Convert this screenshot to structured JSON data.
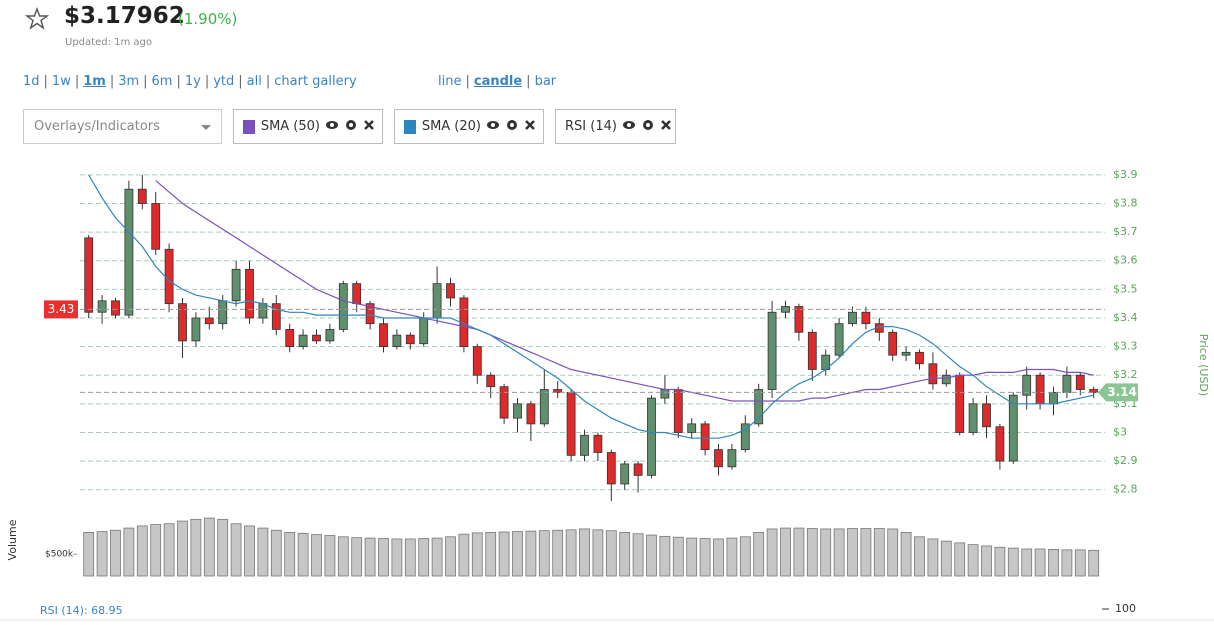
{
  "header": {
    "price": "$3.17962",
    "change": "(1.90%)",
    "updated": "Updated: 1m ago"
  },
  "ranges": {
    "items": [
      "1d",
      "1w",
      "1m",
      "3m",
      "6m",
      "1y",
      "ytd",
      "all",
      "chart gallery"
    ],
    "selected": "1m",
    "separator": "|"
  },
  "chart_types": {
    "items": [
      "line",
      "candle",
      "bar"
    ],
    "selected": "candle"
  },
  "controls": {
    "dropdown": "Overlays/Indicators"
  },
  "chart_data": {
    "type": "candlestick",
    "ylabel": "Price (USD)",
    "ylim": [
      2.75,
      3.945
    ],
    "yticks": [
      {
        "value": 2.8,
        "label": "$2.8"
      },
      {
        "value": 2.9,
        "label": "$2.9"
      },
      {
        "value": 3,
        "label": "$3"
      },
      {
        "value": 3.1,
        "label": "$3.1"
      },
      {
        "value": 3.2,
        "label": "$3.2"
      },
      {
        "value": 3.3,
        "label": "$3.3"
      },
      {
        "value": 3.4,
        "label": "$3.4"
      },
      {
        "value": 3.5,
        "label": "$3.5"
      },
      {
        "value": 3.6,
        "label": "$3.6"
      },
      {
        "value": 3.7,
        "label": "$3.7"
      },
      {
        "value": 3.8,
        "label": "$3.8"
      },
      {
        "value": 3.9,
        "label": "$3.9"
      }
    ],
    "grid": true,
    "up_color": "#5f8f6c",
    "down_color": "#dd2a2a",
    "open": [
      3.68,
      3.42,
      3.46,
      3.41,
      3.85,
      3.8,
      3.64,
      3.45,
      3.32,
      3.4,
      3.38,
      3.46,
      3.57,
      3.4,
      3.45,
      3.36,
      3.3,
      3.34,
      3.32,
      3.36,
      3.52,
      3.45,
      3.38,
      3.3,
      3.34,
      3.31,
      3.4,
      3.52,
      3.47,
      3.3,
      3.2,
      3.16,
      3.05,
      3.1,
      3.03,
      3.15,
      3.14,
      2.92,
      2.99,
      2.93,
      2.82,
      2.89,
      2.85,
      3.12,
      3.15,
      3.0,
      3.03,
      2.94,
      2.88,
      2.94,
      3.03,
      3.15,
      3.42,
      3.44,
      3.35,
      3.22,
      3.27,
      3.38,
      3.42,
      3.38,
      3.35,
      3.27,
      3.28,
      3.24,
      3.17,
      3.2,
      3.0,
      3.1,
      3.02,
      2.9,
      3.13,
      3.2,
      3.1,
      3.14,
      3.2,
      3.15
    ],
    "high": [
      3.69,
      3.48,
      3.47,
      3.88,
      3.9,
      3.84,
      3.66,
      3.47,
      3.42,
      3.44,
      3.48,
      3.6,
      3.6,
      3.47,
      3.48,
      3.38,
      3.36,
      3.36,
      3.38,
      3.53,
      3.53,
      3.46,
      3.4,
      3.36,
      3.35,
      3.42,
      3.58,
      3.54,
      3.48,
      3.31,
      3.21,
      3.17,
      3.12,
      3.11,
      3.22,
      3.18,
      3.15,
      3.01,
      3.0,
      2.94,
      2.9,
      2.9,
      3.13,
      3.2,
      3.16,
      3.05,
      3.04,
      2.96,
      2.96,
      3.06,
      3.17,
      3.46,
      3.46,
      3.45,
      3.36,
      3.29,
      3.4,
      3.44,
      3.44,
      3.4,
      3.36,
      3.3,
      3.29,
      3.28,
      3.22,
      3.21,
      3.12,
      3.13,
      3.03,
      3.14,
      3.23,
      3.21,
      3.16,
      3.23,
      3.21,
      3.16
    ],
    "low": [
      3.4,
      3.38,
      3.4,
      3.4,
      3.78,
      3.62,
      3.42,
      3.26,
      3.3,
      3.36,
      3.36,
      3.44,
      3.38,
      3.38,
      3.34,
      3.28,
      3.29,
      3.31,
      3.31,
      3.35,
      3.42,
      3.36,
      3.28,
      3.29,
      3.29,
      3.3,
      3.38,
      3.44,
      3.28,
      3.17,
      3.12,
      3.03,
      3.0,
      2.97,
      3.02,
      3.12,
      2.9,
      2.9,
      2.9,
      2.76,
      2.8,
      2.79,
      2.84,
      3.1,
      2.98,
      2.98,
      2.92,
      2.85,
      2.87,
      2.93,
      3.02,
      3.12,
      3.4,
      3.32,
      3.18,
      3.2,
      3.26,
      3.37,
      3.36,
      3.32,
      3.25,
      3.25,
      3.22,
      3.15,
      3.16,
      2.99,
      2.99,
      2.98,
      2.87,
      2.89,
      3.08,
      3.08,
      3.06,
      3.12,
      3.13,
      3.12
    ],
    "close": [
      3.42,
      3.46,
      3.41,
      3.85,
      3.8,
      3.64,
      3.45,
      3.32,
      3.4,
      3.38,
      3.46,
      3.57,
      3.4,
      3.45,
      3.36,
      3.3,
      3.34,
      3.32,
      3.36,
      3.52,
      3.45,
      3.38,
      3.3,
      3.34,
      3.31,
      3.4,
      3.52,
      3.47,
      3.3,
      3.2,
      3.16,
      3.05,
      3.1,
      3.03,
      3.15,
      3.14,
      2.92,
      2.99,
      2.93,
      2.82,
      2.89,
      2.85,
      3.12,
      3.15,
      3.0,
      3.03,
      2.94,
      2.88,
      2.94,
      3.03,
      3.15,
      3.42,
      3.44,
      3.35,
      3.22,
      3.27,
      3.38,
      3.42,
      3.38,
      3.35,
      3.27,
      3.28,
      3.24,
      3.17,
      3.2,
      3.0,
      3.1,
      3.02,
      2.9,
      3.13,
      3.2,
      3.1,
      3.14,
      3.2,
      3.15,
      3.14
    ],
    "series": [
      {
        "name": "SMA (50)",
        "color": "#7a4fbf",
        "values": [
          null,
          null,
          null,
          null,
          null,
          3.88,
          3.84,
          3.8,
          3.77,
          3.74,
          3.71,
          3.68,
          3.65,
          3.62,
          3.59,
          3.56,
          3.53,
          3.5,
          3.48,
          3.46,
          3.45,
          3.44,
          3.43,
          3.42,
          3.41,
          3.4,
          3.39,
          3.38,
          3.37,
          3.36,
          3.34,
          3.32,
          3.3,
          3.28,
          3.26,
          3.24,
          3.22,
          3.21,
          3.2,
          3.19,
          3.18,
          3.17,
          3.16,
          3.15,
          3.15,
          3.14,
          3.13,
          3.12,
          3.11,
          3.11,
          3.11,
          3.11,
          3.11,
          3.11,
          3.12,
          3.12,
          3.13,
          3.14,
          3.15,
          3.15,
          3.16,
          3.17,
          3.18,
          3.19,
          3.19,
          3.2,
          3.2,
          3.21,
          3.21,
          3.21,
          3.22,
          3.22,
          3.22,
          3.21,
          3.21,
          3.2
        ]
      },
      {
        "name": "SMA (20)",
        "color": "#2d86bd",
        "values": [
          3.9,
          3.82,
          3.75,
          3.7,
          3.65,
          3.58,
          3.53,
          3.5,
          3.48,
          3.47,
          3.46,
          3.45,
          3.46,
          3.45,
          3.43,
          3.42,
          3.42,
          3.41,
          3.41,
          3.41,
          3.41,
          3.41,
          3.4,
          3.4,
          3.4,
          3.4,
          3.4,
          3.4,
          3.38,
          3.36,
          3.34,
          3.31,
          3.28,
          3.25,
          3.22,
          3.19,
          3.15,
          3.11,
          3.08,
          3.05,
          3.03,
          3.01,
          3.0,
          3.0,
          2.99,
          2.98,
          2.98,
          2.98,
          2.99,
          3.01,
          3.05,
          3.1,
          3.14,
          3.17,
          3.19,
          3.22,
          3.26,
          3.31,
          3.35,
          3.37,
          3.37,
          3.36,
          3.34,
          3.31,
          3.27,
          3.23,
          3.2,
          3.16,
          3.13,
          3.1,
          3.1,
          3.1,
          3.1,
          3.11,
          3.12,
          3.13
        ]
      }
    ],
    "markers": [
      {
        "value": 3.43,
        "label": "3.43",
        "color": "#e8302e",
        "side": "left"
      },
      {
        "value": 3.14,
        "label": "3.14",
        "color": "#8cc594",
        "side": "right"
      }
    ],
    "volume": {
      "label": "Volume",
      "color": "#c6c6c6",
      "ylim": [
        0,
        1400000
      ],
      "yticks": [
        {
          "value": 500000,
          "label": "$500k"
        }
      ],
      "values": [
        1000000,
        1020000,
        1050000,
        1100000,
        1150000,
        1180000,
        1200000,
        1260000,
        1300000,
        1330000,
        1300000,
        1200000,
        1150000,
        1100000,
        1050000,
        1000000,
        980000,
        950000,
        930000,
        900000,
        880000,
        870000,
        860000,
        850000,
        850000,
        860000,
        870000,
        900000,
        960000,
        990000,
        1000000,
        1010000,
        1020000,
        1030000,
        1040000,
        1050000,
        1060000,
        1080000,
        1060000,
        1040000,
        1000000,
        970000,
        940000,
        910000,
        890000,
        870000,
        860000,
        850000,
        870000,
        900000,
        1000000,
        1080000,
        1100000,
        1100000,
        1090000,
        1080000,
        1080000,
        1090000,
        1090000,
        1090000,
        1080000,
        1000000,
        900000,
        850000,
        800000,
        760000,
        720000,
        690000,
        660000,
        640000,
        620000,
        620000,
        610000,
        600000,
        600000,
        590000
      ]
    },
    "rsi": {
      "name": "RSI (14)",
      "label": "RSI (14): 68.95",
      "ticks": [
        100
      ]
    }
  }
}
